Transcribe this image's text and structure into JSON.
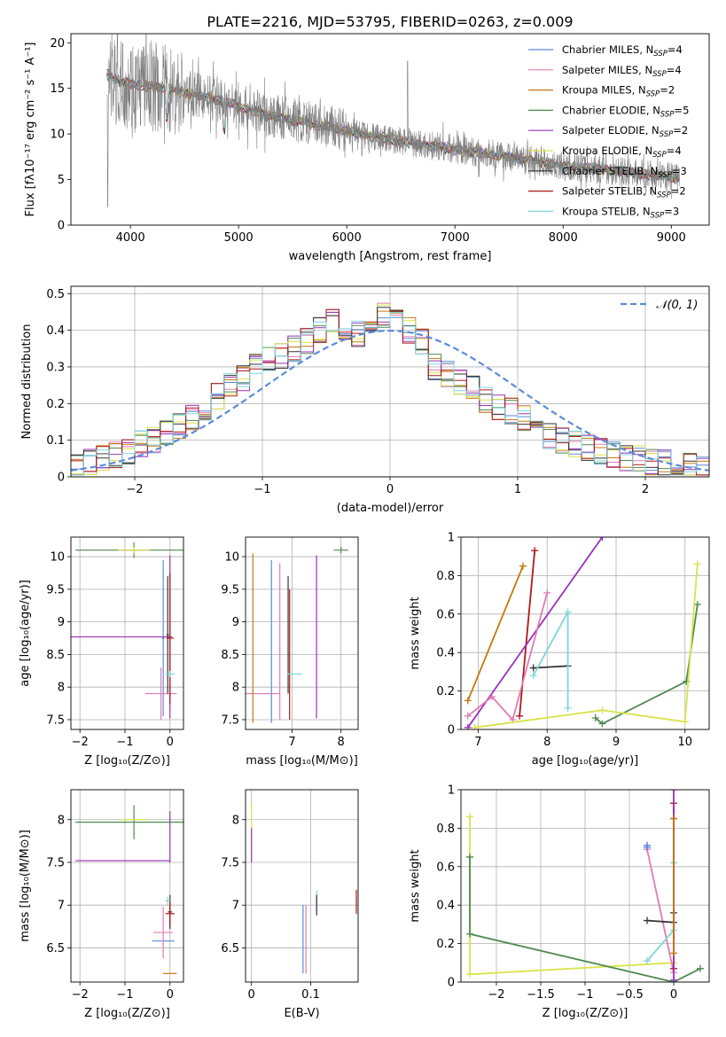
{
  "figure_title": "PLATE=2216, MJD=53795, FIBERID=0263, z=0.009",
  "models": [
    {
      "name": "Chabrier MILES",
      "nssp": "4",
      "color": "#5b8bd9"
    },
    {
      "name": "Salpeter MILES",
      "nssp": "4",
      "color": "#e07bb5"
    },
    {
      "name": "Kroupa MILES",
      "nssp": "2",
      "color": "#c7780d"
    },
    {
      "name": "Chabrier ELODIE",
      "nssp": "5",
      "color": "#4e8a4e"
    },
    {
      "name": "Salpeter ELODIE",
      "nssp": "2",
      "color": "#9932b8"
    },
    {
      "name": "Kroupa ELODIE",
      "nssp": "4",
      "color": "#d9e34a"
    },
    {
      "name": "Chabrier STELIB",
      "nssp": "3",
      "color": "#333333"
    },
    {
      "name": "Salpeter STELIB",
      "nssp": "2",
      "color": "#b01818"
    },
    {
      "name": "Kroupa STELIB",
      "nssp": "3",
      "color": "#7fd6dd"
    }
  ],
  "legend_nssp_label": "N",
  "legend_nssp_sub": "SSP",
  "chart_data": [
    {
      "id": "spectrum",
      "type": "line",
      "xlabel": "wavelength [Angstrom, rest frame]",
      "ylabel": "Flux [fλ10⁻¹⁷ erg cm⁻² s⁻¹ A⁻¹]",
      "xlim": [
        3450,
        9350
      ],
      "ylim": [
        0,
        21
      ],
      "xticks": [
        4000,
        5000,
        6000,
        7000,
        8000,
        9000
      ],
      "yticks": [
        0,
        5,
        10,
        15,
        20
      ],
      "grid": false,
      "data_color": "#808080",
      "continuum_x": [
        3780,
        3900,
        4000,
        4200,
        4400,
        4600,
        4800,
        5000,
        5200,
        5500,
        6000,
        6500,
        7000,
        7500,
        8000,
        8500,
        9000,
        9080
      ],
      "continuum_y": [
        16.5,
        15.8,
        15.5,
        15.2,
        14.8,
        14.3,
        13.8,
        13.0,
        12.3,
        11.5,
        10.3,
        9.2,
        8.3,
        7.5,
        6.5,
        5.9,
        5.3,
        5.1
      ],
      "legend_placement": "top-right"
    },
    {
      "id": "residuals",
      "type": "step",
      "xlabel": "(data-model)/error",
      "ylabel": "Normed distribution",
      "xlim": [
        -2.5,
        2.5
      ],
      "ylim": [
        0,
        0.52
      ],
      "xticks": [
        -2,
        -1,
        0,
        1,
        2
      ],
      "yticks": [
        0.0,
        0.1,
        0.2,
        0.3,
        0.4,
        0.5
      ],
      "grid": true,
      "bins": 50,
      "normal_curve": {
        "label": "𝒩(0, 1)",
        "color": "#5b8bd9",
        "style": "dashed"
      },
      "profiles": [
        [
          0.03,
          0.04,
          0.05,
          0.06,
          0.07,
          0.09,
          0.1,
          0.12,
          0.14,
          0.16,
          0.19,
          0.22,
          0.25,
          0.27,
          0.3,
          0.32,
          0.33,
          0.35,
          0.37,
          0.4,
          0.43,
          0.41,
          0.39,
          0.41,
          0.44,
          0.42,
          0.4,
          0.37,
          0.3,
          0.28,
          0.26,
          0.24,
          0.21,
          0.19,
          0.18,
          0.16,
          0.13,
          0.11,
          0.1,
          0.09,
          0.08,
          0.07,
          0.06,
          0.05,
          0.05,
          0.04,
          0.04,
          0.03,
          0.03,
          0.02
        ]
      ],
      "legend_placement": "top-right"
    },
    {
      "id": "age_vs_Z",
      "type": "errorbar",
      "xlabel": "Z [log₁₀(Z/Z⊙)]",
      "ylabel": "age  [log₁₀(age/yr)]",
      "xlim": [
        -2.2,
        0.3
      ],
      "ylim": [
        7.35,
        10.3
      ],
      "xticks": [
        -2,
        -1,
        0
      ],
      "yticks": [
        7.5,
        8.0,
        8.5,
        9.0,
        9.5,
        10.0
      ],
      "grid": true,
      "points": [
        {
          "model": 0,
          "x": -0.15,
          "y": 8.75,
          "xerr": 0.03,
          "yerr": 1.2
        },
        {
          "model": 1,
          "x": -0.2,
          "y": 7.9,
          "xerr": 0.35,
          "yerr": 0.4
        },
        {
          "model": 3,
          "x": -0.8,
          "y": 10.1,
          "xerr": 1.3,
          "yerr": 0.12
        },
        {
          "model": 4,
          "x": -2.1,
          "y": 8.77,
          "xerr": 2.15,
          "yerr": 0.0
        },
        {
          "model": 4,
          "x": 0.0,
          "y": 8.77,
          "xerr": 0.0,
          "yerr": 1.25
        },
        {
          "model": 5,
          "x": -0.8,
          "y": 10.1,
          "xerr": 0.35,
          "yerr": 0.05
        },
        {
          "model": 6,
          "x": -0.05,
          "y": 8.8,
          "xerr": 0.03,
          "yerr": 0.9
        },
        {
          "model": 7,
          "x": 0.0,
          "y": 8.75,
          "xerr": 0.08,
          "yerr": 1.0
        },
        {
          "model": 8,
          "x": 0.0,
          "y": 8.2,
          "xerr": 0.1,
          "yerr": 0.05
        }
      ]
    },
    {
      "id": "age_vs_mass",
      "type": "errorbar",
      "xlabel": "mass [log₁₀(M/M⊙)]",
      "ylabel": "",
      "xlim": [
        6.05,
        8.35
      ],
      "ylim": [
        7.35,
        10.3
      ],
      "xticks": [
        7,
        8
      ],
      "yticks": [
        7.5,
        8.0,
        8.5,
        9.0,
        9.5,
        10.0
      ],
      "grid": true,
      "points": [
        {
          "model": 0,
          "x": 6.58,
          "y": 8.7,
          "xerr": 0.0,
          "yerr": 1.25
        },
        {
          "model": 1,
          "x": 6.4,
          "y": 7.9,
          "xerr": 0.35,
          "yerr": 0.0
        },
        {
          "model": 1,
          "x": 6.75,
          "y": 8.7,
          "xerr": 0.0,
          "yerr": 1.2
        },
        {
          "model": 2,
          "x": 6.2,
          "y": 8.75,
          "xerr": 0.0,
          "yerr": 1.3
        },
        {
          "model": 3,
          "x": 8.0,
          "y": 10.1,
          "xerr": 0.15,
          "yerr": 0.05
        },
        {
          "model": 4,
          "x": 7.5,
          "y": 8.77,
          "xerr": 0.0,
          "yerr": 1.25
        },
        {
          "model": 6,
          "x": 6.92,
          "y": 8.8,
          "xerr": 0.0,
          "yerr": 0.9
        },
        {
          "model": 7,
          "x": 6.95,
          "y": 8.5,
          "xerr": 0.0,
          "yerr": 1.0
        },
        {
          "model": 8,
          "x": 7.05,
          "y": 8.2,
          "xerr": 0.15,
          "yerr": 0.0
        }
      ]
    },
    {
      "id": "weight_vs_age",
      "type": "line",
      "xlabel": "age  [log₁₀(age/yr)]",
      "ylabel": "mass weight",
      "xlim": [
        6.75,
        10.35
      ],
      "ylim": [
        0,
        1.0
      ],
      "xticks": [
        7,
        8,
        9,
        10
      ],
      "yticks": [
        0.0,
        0.2,
        0.4,
        0.6,
        0.8,
        1.0
      ],
      "grid": true,
      "series": [
        {
          "model": 2,
          "x": [
            6.85,
            7.65
          ],
          "y": [
            0.15,
            0.85
          ]
        },
        {
          "model": 7,
          "x": [
            7.6,
            7.82
          ],
          "y": [
            0.07,
            0.93
          ]
        },
        {
          "model": 4,
          "x": [
            6.85,
            8.8
          ],
          "y": [
            0.01,
            1.0
          ]
        },
        {
          "model": 1,
          "x": [
            6.85,
            7.2,
            7.5,
            8.0
          ],
          "y": [
            0.07,
            0.17,
            0.05,
            0.71
          ]
        },
        {
          "model": 6,
          "x": [
            7.8,
            8.3
          ],
          "y": [
            0.32,
            0.33
          ]
        },
        {
          "model": 8,
          "x": [
            7.8,
            8.3,
            8.3
          ],
          "y": [
            0.28,
            0.61,
            0.11
          ]
        },
        {
          "model": 3,
          "x": [
            8.7,
            8.8,
            10.02,
            10.18
          ],
          "y": [
            0.06,
            0.03,
            0.25,
            0.65
          ]
        },
        {
          "model": 5,
          "x": [
            6.95,
            8.8,
            10.0,
            10.18
          ],
          "y": [
            0.01,
            0.1,
            0.04,
            0.86
          ]
        }
      ]
    },
    {
      "id": "mass_vs_Z",
      "type": "errorbar",
      "xlabel": "Z [log₁₀(Z/Z⊙)]",
      "ylabel": "mass [log₁₀(M/M⊙)]",
      "xlim": [
        -2.2,
        0.3
      ],
      "ylim": [
        6.1,
        8.35
      ],
      "xticks": [
        -2,
        -1,
        0
      ],
      "yticks": [
        6.5,
        7.0,
        7.5,
        8.0
      ],
      "grid": true,
      "points": [
        {
          "model": 0,
          "x": -0.15,
          "y": 6.58,
          "xerr": 0.25,
          "yerr": 0.0
        },
        {
          "model": 1,
          "x": -0.15,
          "y": 6.68,
          "xerr": 0.22,
          "yerr": 0.3
        },
        {
          "model": 2,
          "x": 0.0,
          "y": 6.2,
          "xerr": 0.15,
          "yerr": 0.0
        },
        {
          "model": 3,
          "x": -0.8,
          "y": 7.97,
          "xerr": 1.3,
          "yerr": 0.2
        },
        {
          "model": 4,
          "x": -1.05,
          "y": 7.52,
          "xerr": 1.05,
          "yerr": 0.0
        },
        {
          "model": 4,
          "x": 0.0,
          "y": 7.8,
          "xerr": 0.0,
          "yerr": 0.3
        },
        {
          "model": 5,
          "x": -0.8,
          "y": 8.0,
          "xerr": 0.3,
          "yerr": 0.0
        },
        {
          "model": 6,
          "x": 0.0,
          "y": 6.92,
          "xerr": 0.05,
          "yerr": 0.2
        },
        {
          "model": 7,
          "x": 0.0,
          "y": 6.9,
          "xerr": 0.1,
          "yerr": 0.15
        },
        {
          "model": 8,
          "x": -0.05,
          "y": 7.05,
          "xerr": 0.05,
          "yerr": 0.05
        }
      ]
    },
    {
      "id": "mass_vs_ebv",
      "type": "errorbar",
      "xlabel": "E(B-V)",
      "ylabel": "",
      "xlim": [
        -0.01,
        0.18
      ],
      "ylim": [
        6.1,
        8.35
      ],
      "xticks": [
        0.0,
        0.1
      ],
      "yticks": [
        6.5,
        7.0,
        7.5,
        8.0
      ],
      "grid": true,
      "points": [
        {
          "model": 5,
          "x": 0.0,
          "y": 8.0,
          "xerr": 0.0,
          "yerr": 0.2
        },
        {
          "model": 4,
          "x": 0.0,
          "y": 7.7,
          "xerr": 0.0,
          "yerr": 0.2
        },
        {
          "model": 0,
          "x": 0.087,
          "y": 6.6,
          "xerr": 0.0,
          "yerr": 0.4
        },
        {
          "model": 1,
          "x": 0.092,
          "y": 6.6,
          "xerr": 0.0,
          "yerr": 0.4
        },
        {
          "model": 8,
          "x": 0.11,
          "y": 7.05,
          "xerr": 0.0,
          "yerr": 0.12
        },
        {
          "model": 6,
          "x": 0.11,
          "y": 7.0,
          "xerr": 0.0,
          "yerr": 0.12
        },
        {
          "model": 7,
          "x": 0.177,
          "y": 7.04,
          "xerr": 0.0,
          "yerr": 0.14
        }
      ]
    },
    {
      "id": "weight_vs_Z",
      "type": "line",
      "xlabel": "Z [log₁₀(Z/Z⊙)]",
      "ylabel": "mass weight",
      "xlim": [
        -2.4,
        0.4
      ],
      "ylim": [
        0,
        1.0
      ],
      "xticks": [
        -2.0,
        -1.5,
        -1.0,
        -0.5,
        0.0
      ],
      "yticks": [
        0.0,
        0.2,
        0.4,
        0.6,
        0.8,
        1.0
      ],
      "grid": true,
      "series": [
        {
          "model": 5,
          "x": [
            -2.3,
            -2.3,
            -2.3,
            0.0
          ],
          "y": [
            0.86,
            0.65,
            0.04,
            0.1
          ]
        },
        {
          "model": 3,
          "x": [
            -2.3,
            -2.3,
            0.0,
            0.3
          ],
          "y": [
            0.65,
            0.25,
            0.0,
            0.07
          ]
        },
        {
          "model": 1,
          "x": [
            -0.3,
            -0.3,
            0.0
          ],
          "y": [
            0.71,
            0.69,
            0.05
          ]
        },
        {
          "model": 0,
          "x": [
            -0.3,
            -0.3
          ],
          "y": [
            0.71,
            0.7
          ]
        },
        {
          "model": 6,
          "x": [
            -0.3,
            0.0,
            0.0
          ],
          "y": [
            0.32,
            0.31,
            0.36
          ]
        },
        {
          "model": 8,
          "x": [
            -0.3,
            0.0,
            0.0
          ],
          "y": [
            0.11,
            0.27,
            0.62
          ]
        },
        {
          "model": 7,
          "x": [
            0.0,
            0.0,
            0.0
          ],
          "y": [
            0.07,
            0.93,
            0.85
          ]
        },
        {
          "model": 4,
          "x": [
            0.0,
            0.0
          ],
          "y": [
            0.01,
            1.0
          ]
        },
        {
          "model": 2,
          "x": [
            0.0,
            0.0
          ],
          "y": [
            0.15,
            0.85
          ]
        }
      ]
    }
  ]
}
